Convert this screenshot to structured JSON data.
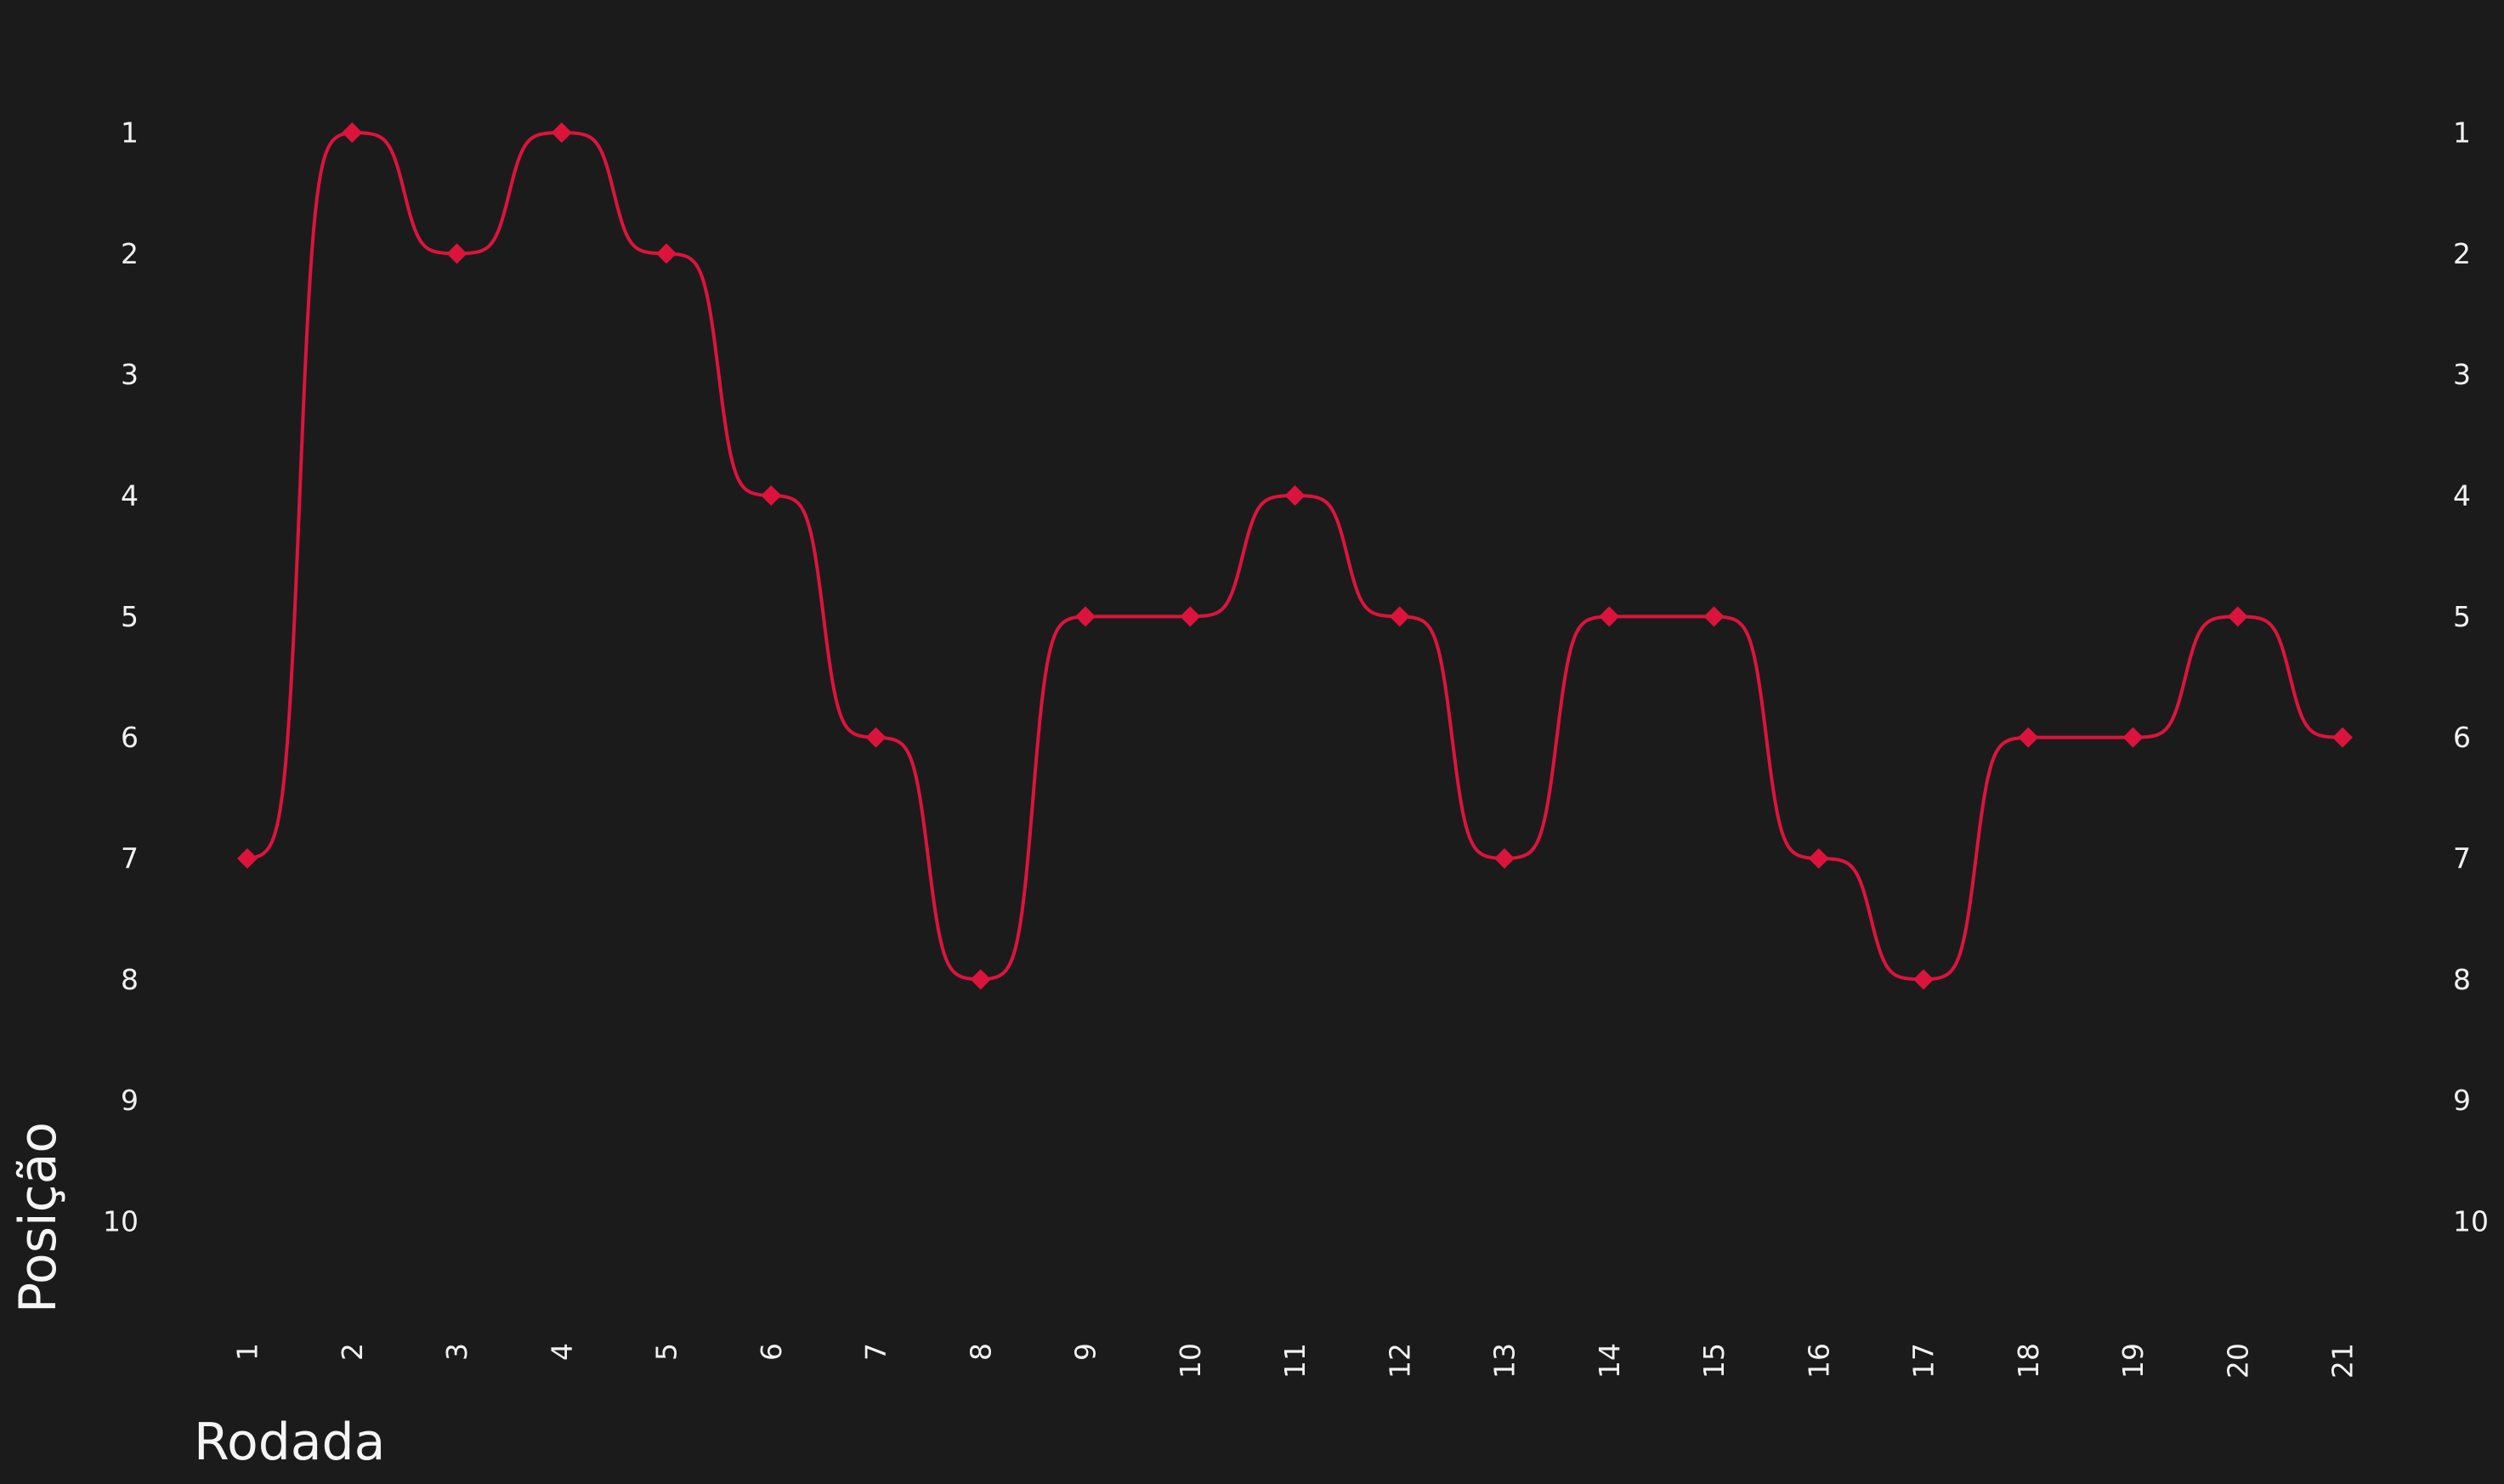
{
  "chart_data": {
    "type": "line",
    "xlabel": "Rodada",
    "ylabel": "Posição",
    "x": [
      1,
      2,
      3,
      4,
      5,
      6,
      7,
      8,
      9,
      10,
      11,
      12,
      13,
      14,
      15,
      16,
      17,
      18,
      19,
      20,
      21
    ],
    "x_tick_labels": [
      "1",
      "2",
      "3",
      "4",
      "5",
      "6",
      "7",
      "8",
      "9",
      "10",
      "11",
      "12",
      "13",
      "14",
      "15",
      "16",
      "17",
      "18",
      "19",
      "20",
      "21"
    ],
    "y_tick_labels": [
      "1",
      "2",
      "3",
      "4",
      "5",
      "6",
      "7",
      "8",
      "9",
      "10"
    ],
    "series": [
      {
        "values": [
          7,
          1,
          2,
          1,
          2,
          4,
          6,
          8,
          5,
          5,
          4,
          5,
          7,
          5,
          5,
          7,
          8,
          6,
          6,
          5,
          6
        ],
        "color": "#dc143c",
        "marker": "diamond",
        "smoothing": "sigmoid step"
      }
    ],
    "xlim": [
      1,
      21
    ],
    "ylim": [
      1,
      10
    ],
    "y_inverted": true,
    "y_ticks_both_sides": true,
    "x_tick_rotation": "vertical",
    "grid": false,
    "legend": "none",
    "background": "#1c1b1c"
  }
}
